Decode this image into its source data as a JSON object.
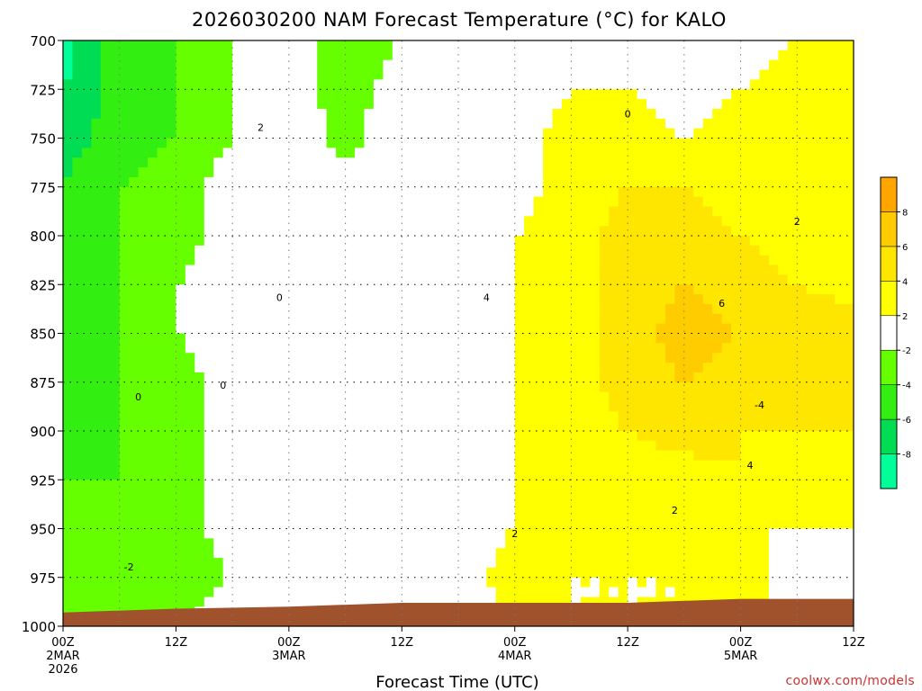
{
  "chart_data": {
    "type": "heatmap",
    "title": "2026030200 NAM Forecast Temperature (°C) for KALO",
    "xlabel": "Forecast Time (UTC)",
    "ylabel": "",
    "x_ticks": [
      {
        "hours": 0,
        "line1": "00Z",
        "line2": "2MAR",
        "line3": "2026"
      },
      {
        "hours": 12,
        "line1": "12Z",
        "line2": "",
        "line3": ""
      },
      {
        "hours": 24,
        "line1": "00Z",
        "line2": "3MAR",
        "line3": ""
      },
      {
        "hours": 36,
        "line1": "12Z",
        "line2": "",
        "line3": ""
      },
      {
        "hours": 48,
        "line1": "00Z",
        "line2": "4MAR",
        "line3": ""
      },
      {
        "hours": 60,
        "line1": "12Z",
        "line2": "",
        "line3": ""
      },
      {
        "hours": 72,
        "line1": "00Z",
        "line2": "5MAR",
        "line3": ""
      },
      {
        "hours": 84,
        "line1": "12Z",
        "line2": "",
        "line3": ""
      }
    ],
    "xlim_hours": [
      0,
      84
    ],
    "y_ticks": [
      700,
      725,
      750,
      775,
      800,
      825,
      850,
      875,
      900,
      925,
      950,
      975,
      1000
    ],
    "ylim_hPa": [
      700,
      1000
    ],
    "y_inverted": true,
    "grid": true,
    "colorbar": {
      "placement": "right",
      "levels": [
        -10,
        -8,
        -6,
        -4,
        -2,
        2,
        4,
        6,
        8,
        10
      ],
      "tick_labels": [
        "8",
        "6",
        "4",
        "2",
        "-2",
        "-4",
        "-6",
        "-8"
      ],
      "colors": [
        "#00ff99",
        "#00dd55",
        "#33ee11",
        "#66ff00",
        "#ffffff",
        "#ffff00",
        "#ffe600",
        "#ffcc00",
        "#ffa500"
      ]
    },
    "contour_labels": [
      "2",
      "0",
      "0",
      "4",
      "6",
      "2",
      "0",
      "0",
      "4",
      "-4",
      "2",
      "2",
      "-2"
    ],
    "ground_color": "#a0522d",
    "temperature_grid": {
      "hours": [
        0,
        6,
        12,
        18,
        24,
        30,
        36,
        42,
        48,
        54,
        60,
        66,
        72,
        78,
        84
      ],
      "pressures": [
        700,
        725,
        750,
        775,
        800,
        825,
        850,
        875,
        900,
        925,
        950,
        975,
        1000
      ],
      "values": [
        [
          -9,
          -5,
          -4,
          -2,
          -1,
          -3,
          -2,
          -1,
          0,
          2,
          1,
          0,
          1,
          2,
          3
        ],
        [
          -8,
          -5,
          -4,
          -2,
          -1,
          -3,
          -1,
          -1,
          0,
          2,
          2,
          1,
          2,
          3,
          3
        ],
        [
          -7,
          -5,
          -4,
          -2,
          0,
          -3,
          0,
          0,
          1,
          3,
          3,
          2,
          3,
          3,
          4
        ],
        [
          -6,
          -4,
          -3,
          -1,
          0,
          -1,
          0,
          0,
          1,
          3,
          4,
          4,
          3,
          2,
          4
        ],
        [
          -5,
          -4,
          -3,
          -1,
          0,
          -1,
          0,
          0,
          2,
          3,
          5,
          5,
          4,
          3,
          3
        ],
        [
          -5,
          -4,
          -2,
          -1,
          0,
          0,
          0,
          0,
          2,
          3,
          5,
          6,
          5,
          4,
          3
        ],
        [
          -5,
          -4,
          -2,
          -1,
          -1,
          0,
          1,
          0,
          2,
          3,
          5,
          7,
          6,
          6,
          5
        ],
        [
          -5,
          -4,
          -3,
          -1,
          0,
          0,
          2,
          0,
          2,
          3,
          5,
          6,
          5,
          6,
          5
        ],
        [
          -5,
          -4,
          -3,
          -1,
          0,
          0,
          2,
          1,
          2,
          3,
          4,
          5,
          4,
          4,
          4
        ],
        [
          -4,
          -4,
          -3,
          -1,
          1,
          1,
          1,
          1,
          2,
          3,
          3,
          3,
          4,
          3,
          3
        ],
        [
          -4,
          -3,
          -3,
          -1,
          1,
          1,
          1,
          1,
          2,
          3,
          3,
          2,
          2,
          2,
          2
        ],
        [
          -3,
          -2,
          -3,
          -2,
          1,
          1,
          0,
          1,
          3,
          2,
          2,
          2,
          3,
          1,
          1
        ],
        [
          -2,
          -2,
          -2,
          -1,
          1,
          1,
          1,
          1,
          2,
          2,
          2,
          2,
          2,
          2,
          2
        ]
      ]
    }
  },
  "footer": {
    "credit": "coolwx.com/models"
  }
}
